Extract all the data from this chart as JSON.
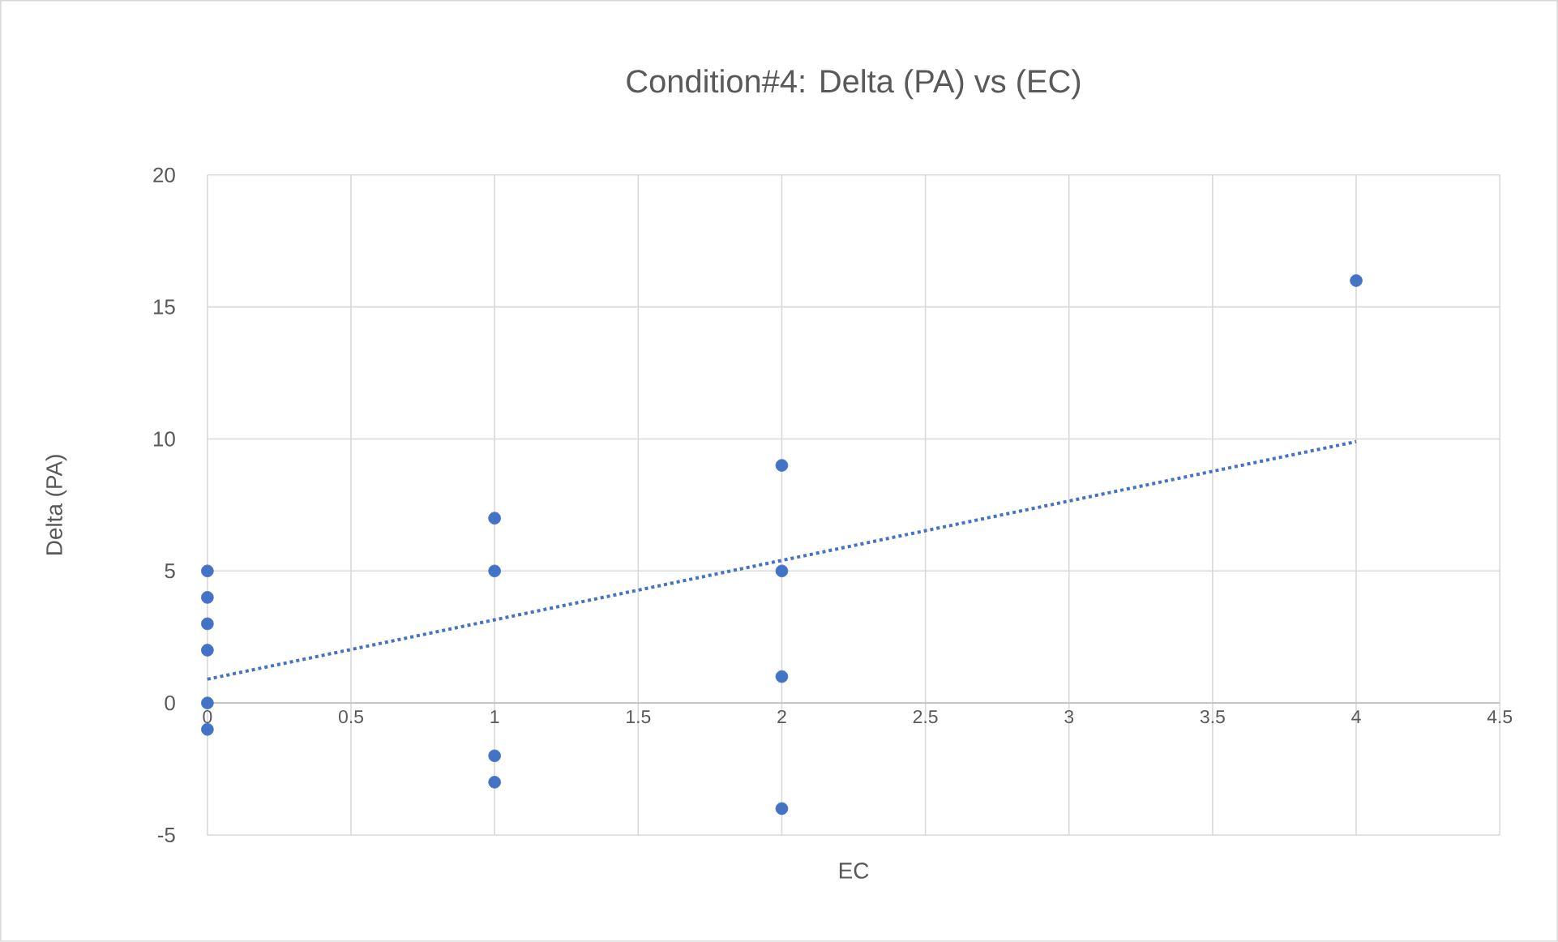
{
  "chart_data": {
    "type": "scatter",
    "title": "Condition#4: Delta (PA) vs (EC)",
    "xlabel": "EC",
    "ylabel": "Delta (PA)",
    "xlim": [
      0,
      4.5
    ],
    "ylim": [
      -5,
      20
    ],
    "xticks": [
      0,
      0.5,
      1,
      1.5,
      2,
      2.5,
      3,
      3.5,
      4,
      4.5
    ],
    "yticks": [
      -5,
      0,
      5,
      10,
      15,
      20
    ],
    "grid": true,
    "marker": "circle",
    "series": [
      {
        "color": "#4472c4",
        "x": [
          0,
          0,
          0,
          0,
          0,
          0,
          1,
          1,
          1,
          1,
          2,
          2,
          2,
          2,
          4
        ],
        "values": [
          5,
          4,
          3,
          2,
          0,
          -1,
          7,
          5,
          -2,
          -3,
          9,
          5,
          1,
          -4,
          16
        ]
      },
      {
        "type": "line",
        "line_style": "dotted",
        "marker": "none",
        "color": "#4472c4",
        "x": [
          0,
          4
        ],
        "values": [
          0.9,
          9.9
        ]
      }
    ]
  }
}
